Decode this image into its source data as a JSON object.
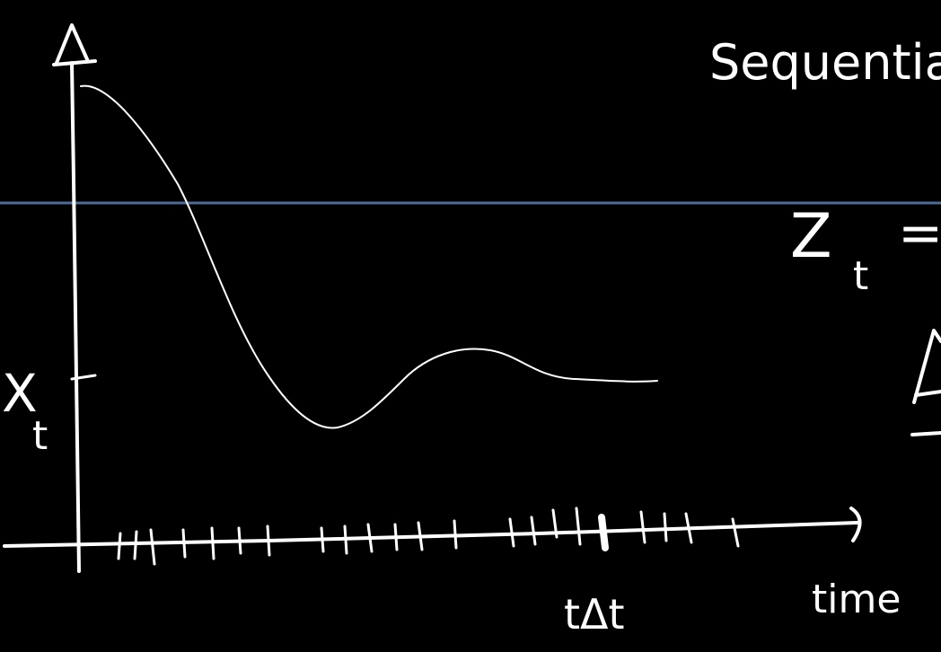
{
  "whiteboard": {
    "background_color": "#000000",
    "ink_color": "#ffffff",
    "guide_line_color": "#4f6a96"
  },
  "graph": {
    "y_label_main": "X",
    "y_label_sub": "t",
    "x_axis_label": "time",
    "tick_label": "tΔt"
  },
  "side_notes": {
    "heading": "Sequentia",
    "formula_main": "Z",
    "formula_sub": "t",
    "formula_rest": "="
  }
}
